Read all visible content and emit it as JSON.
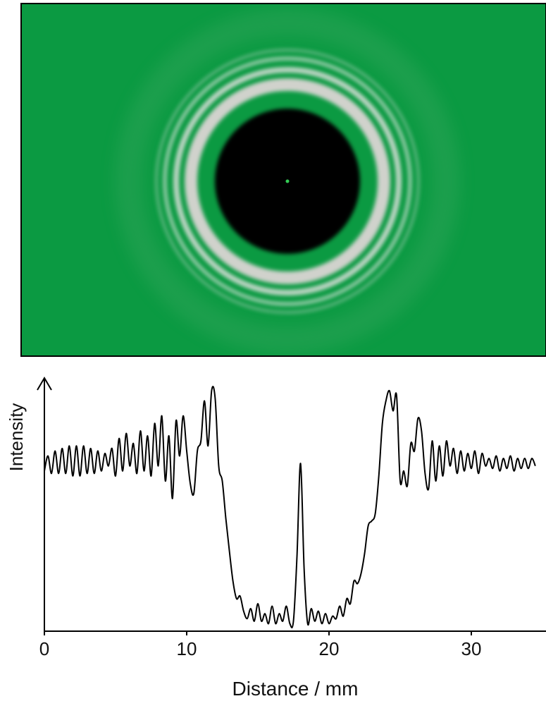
{
  "chart_data": {
    "type": "line",
    "x_label": "Distance / mm",
    "y_label": "Intensity",
    "xlim": [
      0,
      35
    ],
    "ylim": [
      0,
      1
    ],
    "xticks": [
      0,
      10,
      20,
      30
    ],
    "color": "#000000",
    "x": [
      0,
      0.25,
      0.5,
      0.75,
      1,
      1.25,
      1.5,
      1.75,
      2,
      2.25,
      2.5,
      2.75,
      3,
      3.25,
      3.5,
      3.75,
      4,
      4.25,
      4.5,
      4.75,
      5,
      5.25,
      5.5,
      5.75,
      6,
      6.25,
      6.5,
      6.75,
      7,
      7.25,
      7.5,
      7.75,
      8,
      8.25,
      8.5,
      8.75,
      9,
      9.25,
      9.5,
      9.75,
      10,
      10.25,
      10.5,
      10.75,
      11,
      11.25,
      11.5,
      11.75,
      12,
      12.25,
      12.5,
      12.75,
      13,
      13.25,
      13.5,
      13.75,
      14,
      14.25,
      14.5,
      14.75,
      15,
      15.25,
      15.5,
      15.75,
      16,
      16.25,
      16.5,
      16.75,
      17,
      17.25,
      17.5,
      17.75,
      18,
      18.25,
      18.5,
      18.75,
      19,
      19.25,
      19.5,
      19.75,
      20,
      20.25,
      20.5,
      20.75,
      21,
      21.25,
      21.5,
      21.75,
      22,
      22.25,
      22.5,
      22.75,
      23,
      23.25,
      23.5,
      23.75,
      24,
      24.25,
      24.5,
      24.75,
      25,
      25.25,
      25.5,
      25.75,
      26,
      26.25,
      26.5,
      26.75,
      27,
      27.25,
      27.5,
      27.75,
      28,
      28.25,
      28.5,
      28.75,
      29,
      29.25,
      29.5,
      29.75,
      30,
      30.25,
      30.5,
      30.75,
      31,
      31.25,
      31.5,
      31.75,
      32,
      32.25,
      32.5,
      32.75,
      33,
      33.25,
      33.5,
      33.75,
      34,
      34.25,
      34.5
    ],
    "values": [
      0.64,
      0.7,
      0.63,
      0.72,
      0.63,
      0.73,
      0.63,
      0.74,
      0.62,
      0.74,
      0.62,
      0.74,
      0.63,
      0.73,
      0.63,
      0.72,
      0.64,
      0.71,
      0.66,
      0.73,
      0.62,
      0.77,
      0.64,
      0.79,
      0.66,
      0.75,
      0.63,
      0.8,
      0.64,
      0.78,
      0.62,
      0.83,
      0.66,
      0.86,
      0.6,
      0.78,
      0.53,
      0.84,
      0.7,
      0.86,
      0.72,
      0.59,
      0.55,
      0.72,
      0.76,
      0.92,
      0.74,
      0.96,
      0.93,
      0.66,
      0.6,
      0.45,
      0.32,
      0.2,
      0.13,
      0.14,
      0.08,
      0.05,
      0.09,
      0.04,
      0.11,
      0.04,
      0.07,
      0.03,
      0.1,
      0.03,
      0.07,
      0.04,
      0.1,
      0.03,
      0.04,
      0.3,
      0.67,
      0.25,
      0.03,
      0.09,
      0.04,
      0.08,
      0.03,
      0.07,
      0.03,
      0.06,
      0.05,
      0.1,
      0.06,
      0.13,
      0.11,
      0.2,
      0.19,
      0.23,
      0.31,
      0.42,
      0.44,
      0.47,
      0.62,
      0.83,
      0.92,
      0.96,
      0.88,
      0.94,
      0.6,
      0.64,
      0.58,
      0.75,
      0.72,
      0.85,
      0.8,
      0.63,
      0.57,
      0.76,
      0.6,
      0.74,
      0.62,
      0.76,
      0.66,
      0.73,
      0.63,
      0.72,
      0.64,
      0.71,
      0.65,
      0.72,
      0.63,
      0.71,
      0.66,
      0.69,
      0.65,
      0.7,
      0.64,
      0.69,
      0.65,
      0.7,
      0.64,
      0.69,
      0.65,
      0.69,
      0.65,
      0.69,
      0.66
    ]
  }
}
